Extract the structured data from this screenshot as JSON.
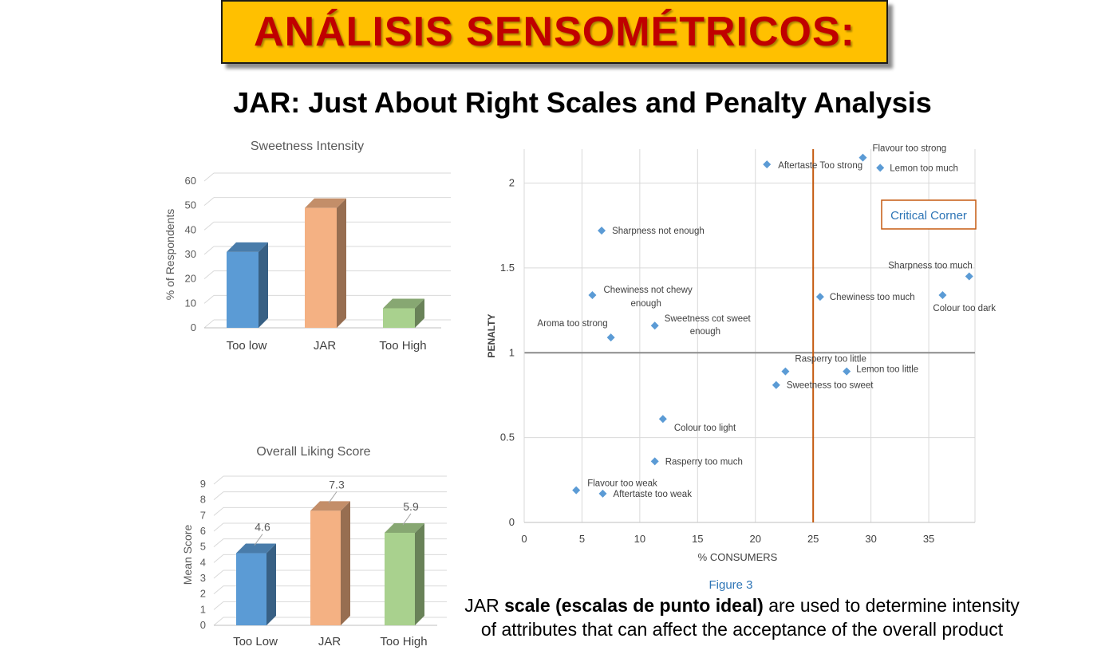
{
  "header": {
    "title": "ANÁLISIS SENSOMÉTRICOS:",
    "subtitle": "JAR: Just About Right Scales and Penalty Analysis"
  },
  "caption": {
    "prefix": "JAR ",
    "bold": "scale (escalas de punto ideal)",
    "rest": " are used to determine intensity of attributes that can affect the acceptance of the overall product"
  },
  "colors": {
    "blue": "#5b9bd5",
    "orange": "#f4b183",
    "green": "#a9d18e",
    "title_bg": "#ffc000",
    "title_text": "#c00000",
    "threshold": "#c55a11",
    "marker": "#5b9bd5",
    "critical_text": "#2e75b6"
  },
  "chart_data": [
    {
      "type": "bar",
      "title": "Sweetness Intensity",
      "ylabel": "% of Respondents",
      "categories": [
        "Too low",
        "JAR",
        "Too High"
      ],
      "values": [
        31,
        49,
        8
      ],
      "ylim": [
        0,
        60
      ],
      "yticks": [
        "0",
        "10",
        "20",
        "30",
        "40",
        "50",
        "60"
      ],
      "grid": true
    },
    {
      "type": "bar",
      "title": "Overall Liking Score",
      "ylabel": "Mean Score",
      "categories": [
        "Too Low",
        "JAR",
        "Too High"
      ],
      "values": [
        4.6,
        7.3,
        5.9
      ],
      "data_labels": [
        "4.6",
        "7.3",
        "5.9"
      ],
      "ylim": [
        0,
        9
      ],
      "yticks": [
        "0",
        "1",
        "2",
        "3",
        "4",
        "5",
        "6",
        "7",
        "8",
        "9"
      ],
      "grid": true
    },
    {
      "type": "scatter",
      "xlabel": "% CONSUMERS",
      "ylabel": "PENALTY",
      "xlim": [
        0,
        39
      ],
      "ylim": [
        0,
        2.2
      ],
      "xticks": [
        "0",
        "5",
        "10",
        "15",
        "20",
        "25",
        "30",
        "35"
      ],
      "yticks": [
        "0",
        "0.5",
        "1",
        "1.5",
        "2"
      ],
      "threshold_x": 25,
      "threshold_y": 1,
      "annotation": "Critical Corner",
      "figure_label": "Figure 3",
      "points": [
        {
          "x": 29.3,
          "y": 2.15,
          "label": "Flavour too strong"
        },
        {
          "x": 21.0,
          "y": 2.11,
          "label": "Aftertaste Too strong"
        },
        {
          "x": 30.8,
          "y": 2.09,
          "label": "Lemon too much"
        },
        {
          "x": 6.7,
          "y": 1.72,
          "label": "Sharpness not  enough"
        },
        {
          "x": 38.5,
          "y": 1.45,
          "label": "Sharpness too much"
        },
        {
          "x": 36.2,
          "y": 1.34,
          "label": "Colour too dark"
        },
        {
          "x": 5.9,
          "y": 1.34,
          "label": "Chewiness not chewy enough"
        },
        {
          "x": 25.6,
          "y": 1.33,
          "label": "Chewiness too much"
        },
        {
          "x": 11.3,
          "y": 1.16,
          "label": "Sweetness cot sweet enough"
        },
        {
          "x": 7.5,
          "y": 1.09,
          "label": "Aroma too strong"
        },
        {
          "x": 22.6,
          "y": 0.89,
          "label": "Rasperry too little"
        },
        {
          "x": 27.9,
          "y": 0.89,
          "label": "Lemon too little"
        },
        {
          "x": 21.8,
          "y": 0.81,
          "label": "Sweetness too sweet"
        },
        {
          "x": 12.0,
          "y": 0.61,
          "label": "Colour too light"
        },
        {
          "x": 11.3,
          "y": 0.36,
          "label": "Rasperry too much"
        },
        {
          "x": 4.5,
          "y": 0.19,
          "label": "Flavour too weak"
        },
        {
          "x": 6.8,
          "y": 0.17,
          "label": "Aftertaste too weak"
        }
      ]
    }
  ]
}
